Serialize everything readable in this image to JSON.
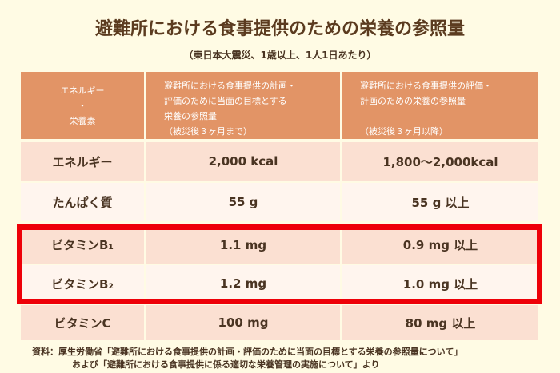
{
  "title": "避難所における食事提供のための栄養の参照量",
  "subtitle": "（東日本大震災、1歳以上、1人1日あたり）",
  "table": {
    "headers": [
      "エネルギー\n・\n栄養素",
      "避難所における食事提供の計画・\n評価のために当面の目標とする\n栄養の参照量\n（被災後３ヶ月まで）",
      "避難所における食事提供の評価・\n計画のための栄養の参照量\n\n（被災後３ヶ月以降）"
    ],
    "rows": [
      [
        "エネルギー",
        "2,000 kcal",
        "1,800～2,000kcal"
      ],
      [
        "たんぱく質",
        "55 g",
        "55 g 以上"
      ],
      [
        "ビタミンB₁",
        "1.1 mg",
        "0.9 mg 以上"
      ],
      [
        "ビタミンB₂",
        "1.2 mg",
        "1.0 mg 以上"
      ],
      [
        "ビタミンC",
        "100 mg",
        "80 mg 以上"
      ]
    ],
    "highlighted_rows": [
      "ビタミンB₁",
      "ビタミンB₂"
    ]
  },
  "source": {
    "line1": "資料：厚生労働省「避難所における食事提供の計画・評価のために当面の目標とする栄養の参照量について」",
    "line2": "および「避難所における食事提供に係る適切な栄養管理の実施について」より"
  },
  "colors": {
    "header": "#e29466",
    "row_pink": "#fbe0d2",
    "row_light": "#fff5ee",
    "highlight": "#ee0008",
    "background": "#fffbe4"
  }
}
